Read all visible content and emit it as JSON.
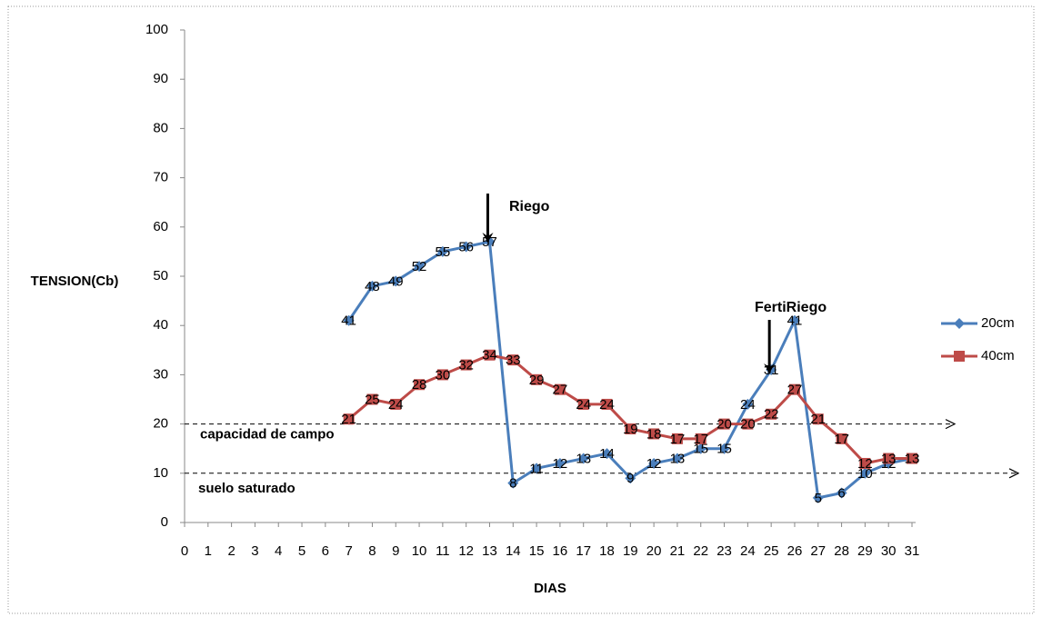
{
  "chart_data": {
    "type": "line",
    "y_label": "TENSION(Cb)",
    "x_label": "DIAS",
    "xlim": [
      0,
      31
    ],
    "xticks": [
      0,
      1,
      2,
      3,
      4,
      5,
      6,
      7,
      8,
      9,
      10,
      11,
      12,
      13,
      14,
      15,
      16,
      17,
      18,
      19,
      20,
      21,
      22,
      23,
      24,
      25,
      26,
      27,
      28,
      29,
      30,
      31
    ],
    "ylim": [
      0,
      100
    ],
    "yticks": [
      0,
      10,
      20,
      30,
      40,
      50,
      60,
      70,
      80,
      90,
      100
    ],
    "x": [
      7,
      8,
      9,
      10,
      11,
      12,
      13,
      14,
      15,
      16,
      17,
      18,
      19,
      20,
      21,
      22,
      23,
      24,
      25,
      26,
      27,
      28,
      29,
      30,
      31
    ],
    "series": [
      {
        "name": "20cm",
        "color": "#4a7ebb",
        "marker": "diamond",
        "values": [
          41,
          48,
          49,
          52,
          55,
          56,
          57,
          8,
          11,
          12,
          13,
          14,
          9,
          12,
          13,
          15,
          15,
          24,
          31,
          41,
          5,
          6,
          10,
          12,
          13
        ]
      },
      {
        "name": "40cm",
        "color": "#be4b48",
        "marker": "square",
        "values": [
          21,
          25,
          24,
          28,
          30,
          32,
          34,
          33,
          29,
          27,
          24,
          24,
          19,
          18,
          17,
          17,
          20,
          20,
          22,
          27,
          21,
          17,
          12,
          13,
          13
        ]
      }
    ],
    "reference_lines": [
      {
        "label": "capacidad de campo",
        "value": 20
      },
      {
        "label": "suelo saturado",
        "value": 10
      }
    ],
    "annotations": [
      {
        "text": "Riego",
        "x": 13
      },
      {
        "text": "FertiRiego",
        "x": 25
      }
    ]
  }
}
